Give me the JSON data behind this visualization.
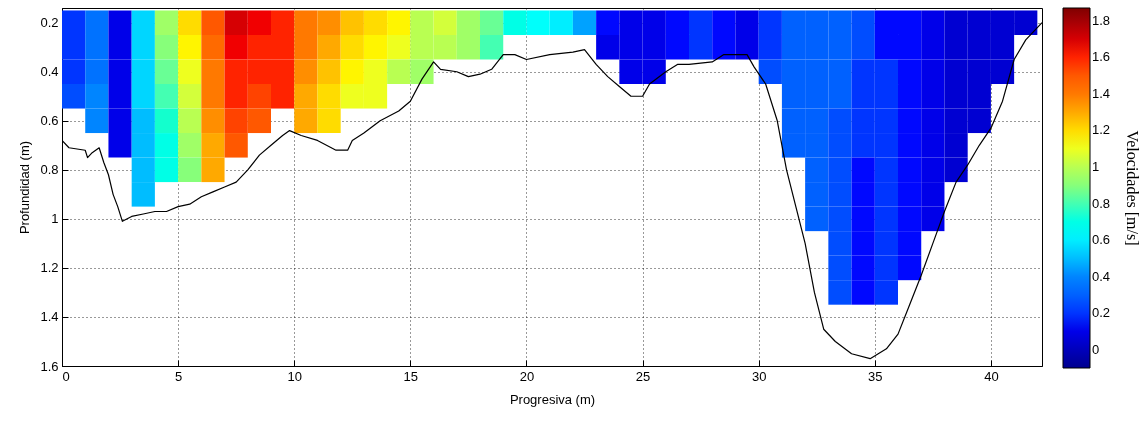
{
  "chart_data": {
    "type": "heatmap",
    "xlabel": "Progresiva (m)",
    "ylabel": "Profundidad (m)",
    "clabel": "Velocidades [m/s]",
    "x": [
      0.5,
      1.5,
      2.5,
      3.5,
      4.5,
      5.5,
      6.5,
      7.5,
      8.5,
      9.5,
      10.5,
      11.5,
      12.5,
      13.5,
      14.5,
      15.5,
      16.5,
      17.5,
      18.5,
      19.5,
      20.5,
      21.5,
      22.5,
      23.5,
      24.5,
      25.5,
      26.5,
      27.5,
      28.5,
      29.5,
      30.5,
      31.5,
      32.5,
      33.5,
      34.5,
      35.5,
      36.5,
      37.5,
      38.5,
      39.5,
      40.5,
      41.5
    ],
    "y": [
      0.2,
      0.3,
      0.4,
      0.5,
      0.6,
      0.7,
      0.8,
      0.9,
      1.0,
      1.1,
      1.2,
      1.3
    ],
    "cells": [
      [
        0.2,
        0.35,
        0.1,
        0.55,
        0.95,
        1.2,
        1.5,
        1.7,
        1.65,
        1.6,
        1.4,
        1.35,
        1.25,
        1.2,
        1.15,
        1.0,
        1.05,
        0.95,
        0.85,
        0.7,
        0.65,
        0.6,
        0.45,
        0.15,
        0.1,
        0.1,
        0.15,
        0.2,
        0.15,
        0.1,
        0.2,
        0.3,
        0.3,
        0.3,
        0.25,
        0.15,
        0.15,
        0.1,
        0.05,
        0.05,
        0.05,
        0.05
      ],
      [
        0.2,
        0.35,
        0.1,
        0.55,
        0.9,
        1.15,
        1.45,
        1.65,
        1.6,
        1.6,
        1.4,
        1.3,
        1.2,
        1.15,
        1.1,
        1.0,
        1.0,
        0.95,
        0.8,
        null,
        null,
        null,
        null,
        0.1,
        0.1,
        0.1,
        0.15,
        0.2,
        0.15,
        0.1,
        0.2,
        0.3,
        0.3,
        0.3,
        0.25,
        0.15,
        0.15,
        0.1,
        0.05,
        0.05,
        0.05,
        null
      ],
      [
        0.2,
        0.35,
        0.1,
        0.55,
        0.85,
        1.1,
        1.4,
        1.6,
        1.6,
        1.6,
        1.35,
        1.25,
        1.15,
        1.1,
        1.0,
        0.95,
        null,
        null,
        null,
        null,
        null,
        null,
        null,
        null,
        0.1,
        0.1,
        null,
        null,
        null,
        null,
        0.25,
        0.3,
        0.3,
        0.3,
        0.2,
        0.2,
        0.15,
        0.1,
        0.05,
        0.05,
        0.05,
        null
      ],
      [
        0.25,
        0.4,
        0.1,
        0.55,
        0.8,
        1.05,
        1.4,
        1.6,
        1.55,
        1.6,
        1.3,
        1.2,
        1.1,
        1.1,
        null,
        null,
        null,
        null,
        null,
        null,
        null,
        null,
        null,
        null,
        null,
        null,
        null,
        null,
        null,
        null,
        null,
        0.3,
        0.3,
        0.3,
        0.2,
        0.2,
        0.15,
        0.1,
        0.05,
        0.05,
        null,
        null
      ],
      [
        null,
        0.4,
        0.1,
        0.5,
        0.75,
        1.0,
        1.35,
        1.55,
        1.5,
        null,
        1.3,
        1.2,
        null,
        null,
        null,
        null,
        null,
        null,
        null,
        null,
        null,
        null,
        null,
        null,
        null,
        null,
        null,
        null,
        null,
        null,
        null,
        0.3,
        0.3,
        0.25,
        0.2,
        0.2,
        0.15,
        0.1,
        0.05,
        0.05,
        null,
        null
      ],
      [
        null,
        null,
        0.1,
        0.5,
        0.7,
        0.95,
        1.3,
        1.5,
        null,
        null,
        null,
        null,
        null,
        null,
        null,
        null,
        null,
        null,
        null,
        null,
        null,
        null,
        null,
        null,
        null,
        null,
        null,
        null,
        null,
        null,
        null,
        0.3,
        0.3,
        0.25,
        0.2,
        0.2,
        0.15,
        0.1,
        0.05,
        null,
        null,
        null
      ],
      [
        null,
        null,
        null,
        0.5,
        0.7,
        0.9,
        1.3,
        null,
        null,
        null,
        null,
        null,
        null,
        null,
        null,
        null,
        null,
        null,
        null,
        null,
        null,
        null,
        null,
        null,
        null,
        null,
        null,
        null,
        null,
        null,
        null,
        null,
        0.3,
        0.25,
        0.15,
        0.2,
        0.15,
        0.1,
        0.05,
        null,
        null,
        null
      ],
      [
        null,
        null,
        null,
        0.5,
        null,
        null,
        null,
        null,
        null,
        null,
        null,
        null,
        null,
        null,
        null,
        null,
        null,
        null,
        null,
        null,
        null,
        null,
        null,
        null,
        null,
        null,
        null,
        null,
        null,
        null,
        null,
        null,
        0.3,
        0.25,
        0.15,
        0.2,
        0.15,
        0.1,
        null,
        null,
        null,
        null
      ],
      [
        null,
        null,
        null,
        null,
        null,
        null,
        null,
        null,
        null,
        null,
        null,
        null,
        null,
        null,
        null,
        null,
        null,
        null,
        null,
        null,
        null,
        null,
        null,
        null,
        null,
        null,
        null,
        null,
        null,
        null,
        null,
        null,
        0.3,
        0.25,
        0.15,
        0.2,
        0.15,
        0.1,
        null,
        null,
        null,
        null
      ],
      [
        null,
        null,
        null,
        null,
        null,
        null,
        null,
        null,
        null,
        null,
        null,
        null,
        null,
        null,
        null,
        null,
        null,
        null,
        null,
        null,
        null,
        null,
        null,
        null,
        null,
        null,
        null,
        null,
        null,
        null,
        null,
        null,
        null,
        0.25,
        0.15,
        0.2,
        0.15,
        null,
        null,
        null,
        null,
        null
      ],
      [
        null,
        null,
        null,
        null,
        null,
        null,
        null,
        null,
        null,
        null,
        null,
        null,
        null,
        null,
        null,
        null,
        null,
        null,
        null,
        null,
        null,
        null,
        null,
        null,
        null,
        null,
        null,
        null,
        null,
        null,
        null,
        null,
        null,
        0.25,
        0.15,
        0.2,
        0.15,
        null,
        null,
        null,
        null,
        null
      ],
      [
        null,
        null,
        null,
        null,
        null,
        null,
        null,
        null,
        null,
        null,
        null,
        null,
        null,
        null,
        null,
        null,
        null,
        null,
        null,
        null,
        null,
        null,
        null,
        null,
        null,
        null,
        null,
        null,
        null,
        null,
        null,
        null,
        null,
        0.25,
        0.15,
        0.2,
        null,
        null,
        null,
        null,
        null,
        null
      ]
    ],
    "clim": [
      -0.1,
      1.87
    ],
    "cticks": [
      0,
      0.2,
      0.4,
      0.6,
      0.8,
      1,
      1.2,
      1.4,
      1.6,
      1.8
    ],
    "series": [
      {
        "type": "line",
        "color": "#000000",
        "x": [
          0,
          0.3,
          1,
          1.1,
          1.3,
          1.6,
          1.8,
          2,
          2.2,
          2.4,
          2.6,
          3,
          3.5,
          4,
          4.5,
          5,
          5.5,
          6,
          6.5,
          7,
          7.5,
          8,
          8.5,
          9,
          9.5,
          9.8,
          10.3,
          11,
          11.8,
          12.3,
          12.5,
          13,
          13.7,
          14.5,
          15,
          15.5,
          16,
          16.3,
          17,
          17.5,
          18,
          18.5,
          19,
          19.5,
          20,
          21,
          22,
          22.5,
          23,
          23.5,
          24,
          24.5,
          25,
          25.3,
          26,
          26.5,
          27,
          28,
          28.5,
          29.5,
          29.8,
          30.3,
          30.8,
          31.2,
          31.6,
          32,
          32.4,
          32.8,
          33.3,
          34,
          34.8,
          35.5,
          36,
          36.5,
          37,
          37.5,
          38,
          38.5,
          39,
          39.5,
          40,
          40.5,
          41,
          41.5,
          42.2
        ],
        "values": [
          0.68,
          0.71,
          0.72,
          0.75,
          0.73,
          0.71,
          0.77,
          0.82,
          0.9,
          0.95,
          1.01,
          0.99,
          0.98,
          0.97,
          0.97,
          0.95,
          0.94,
          0.91,
          0.89,
          0.87,
          0.85,
          0.8,
          0.74,
          0.7,
          0.66,
          0.64,
          0.66,
          0.68,
          0.72,
          0.72,
          0.68,
          0.65,
          0.6,
          0.56,
          0.52,
          0.43,
          0.36,
          0.39,
          0.4,
          0.42,
          0.41,
          0.39,
          0.33,
          0.33,
          0.35,
          0.33,
          0.32,
          0.31,
          0.37,
          0.42,
          0.46,
          0.5,
          0.5,
          0.45,
          0.4,
          0.37,
          0.37,
          0.36,
          0.33,
          0.33,
          0.38,
          0.45,
          0.6,
          0.8,
          0.95,
          1.1,
          1.3,
          1.45,
          1.5,
          1.55,
          1.57,
          1.53,
          1.47,
          1.35,
          1.23,
          1.1,
          0.97,
          0.85,
          0.78,
          0.7,
          0.63,
          0.52,
          0.35,
          0.27,
          0.2
        ]
      }
    ],
    "xlim": [
      0,
      42.2
    ],
    "xticks": [
      0,
      5,
      10,
      15,
      20,
      25,
      30,
      35,
      40
    ],
    "ylim": [
      1.6,
      0.14
    ],
    "yticks": [
      0.2,
      0.4,
      0.6,
      0.8,
      1,
      1.2,
      1.4,
      1.6
    ],
    "grid": true
  }
}
